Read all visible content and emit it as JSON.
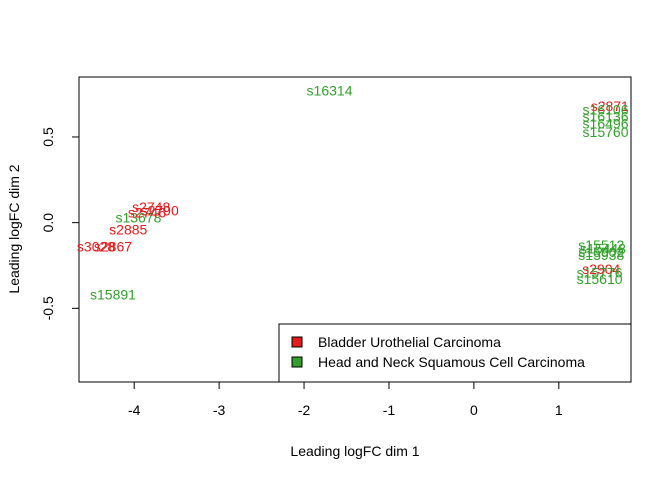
{
  "chart_data": {
    "type": "scatter",
    "xlabel": "Leading logFC dim 1",
    "ylabel": "Leading logFC dim 2",
    "xlim": [
      -4.65,
      1.85
    ],
    "ylim": [
      -0.93,
      0.85
    ],
    "x_ticks": [
      -4,
      -3,
      -2,
      -1,
      0,
      1
    ],
    "y_ticks": [
      -0.5,
      0.0,
      0.5
    ],
    "y_tick_labels": [
      "-0.5",
      "0.0",
      "0.5"
    ],
    "grid": false,
    "legend_position": "bottom-right",
    "colors": {
      "Bladder Urothelial Carcinoma": "#e41a1c",
      "Head and Neck Squamous Cell Carcinoma": "#33a02c"
    },
    "legend": [
      {
        "label": "Bladder Urothelial Carcinoma",
        "color": "#e41a1c"
      },
      {
        "label": "Head and Neck Squamous Cell Carcinoma",
        "color": "#33a02c"
      }
    ],
    "points": [
      {
        "label": "s16314",
        "group": "Head and Neck Squamous Cell Carcinoma",
        "x": -1.7,
        "y": 0.77
      },
      {
        "label": "s15891",
        "group": "Head and Neck Squamous Cell Carcinoma",
        "x": -4.25,
        "y": -0.42
      },
      {
        "label": "s13678",
        "group": "Head and Neck Squamous Cell Carcinoma",
        "x": -3.95,
        "y": 0.03
      },
      {
        "label": "s2748",
        "group": "Bladder Urothelial Carcinoma",
        "x": -3.8,
        "y": 0.09
      },
      {
        "label": "s2790",
        "group": "Bladder Urothelial Carcinoma",
        "x": -3.7,
        "y": 0.07
      },
      {
        "label": "s2746",
        "group": "Bladder Urothelial Carcinoma",
        "x": -3.85,
        "y": 0.06
      },
      {
        "label": "s2885",
        "group": "Bladder Urothelial Carcinoma",
        "x": -4.07,
        "y": -0.04
      },
      {
        "label": "s3028",
        "group": "Bladder Urothelial Carcinoma",
        "x": -4.45,
        "y": -0.14
      },
      {
        "label": "s2867",
        "group": "Bladder Urothelial Carcinoma",
        "x": -4.25,
        "y": -0.14
      },
      {
        "label": "s2871",
        "group": "Bladder Urothelial Carcinoma",
        "x": 1.6,
        "y": 0.68
      },
      {
        "label": "s16106",
        "group": "Head and Neck Squamous Cell Carcinoma",
        "x": 1.55,
        "y": 0.66
      },
      {
        "label": "s16136",
        "group": "Head and Neck Squamous Cell Carcinoma",
        "x": 1.55,
        "y": 0.62
      },
      {
        "label": "s16496",
        "group": "Head and Neck Squamous Cell Carcinoma",
        "x": 1.55,
        "y": 0.58
      },
      {
        "label": "s15760",
        "group": "Head and Neck Squamous Cell Carcinoma",
        "x": 1.55,
        "y": 0.53
      },
      {
        "label": "s15512",
        "group": "Head and Neck Squamous Cell Carcinoma",
        "x": 1.5,
        "y": -0.13
      },
      {
        "label": "s15448",
        "group": "Head and Neck Squamous Cell Carcinoma",
        "x": 1.52,
        "y": -0.15
      },
      {
        "label": "s15902",
        "group": "Head and Neck Squamous Cell Carcinoma",
        "x": 1.5,
        "y": -0.17
      },
      {
        "label": "s15938",
        "group": "Head and Neck Squamous Cell Carcinoma",
        "x": 1.5,
        "y": -0.19
      },
      {
        "label": "s2904",
        "group": "Bladder Urothelial Carcinoma",
        "x": 1.5,
        "y": -0.27
      },
      {
        "label": "s15776",
        "group": "Head and Neck Squamous Cell Carcinoma",
        "x": 1.48,
        "y": -0.29
      },
      {
        "label": "s15610",
        "group": "Head and Neck Squamous Cell Carcinoma",
        "x": 1.48,
        "y": -0.33
      }
    ]
  }
}
